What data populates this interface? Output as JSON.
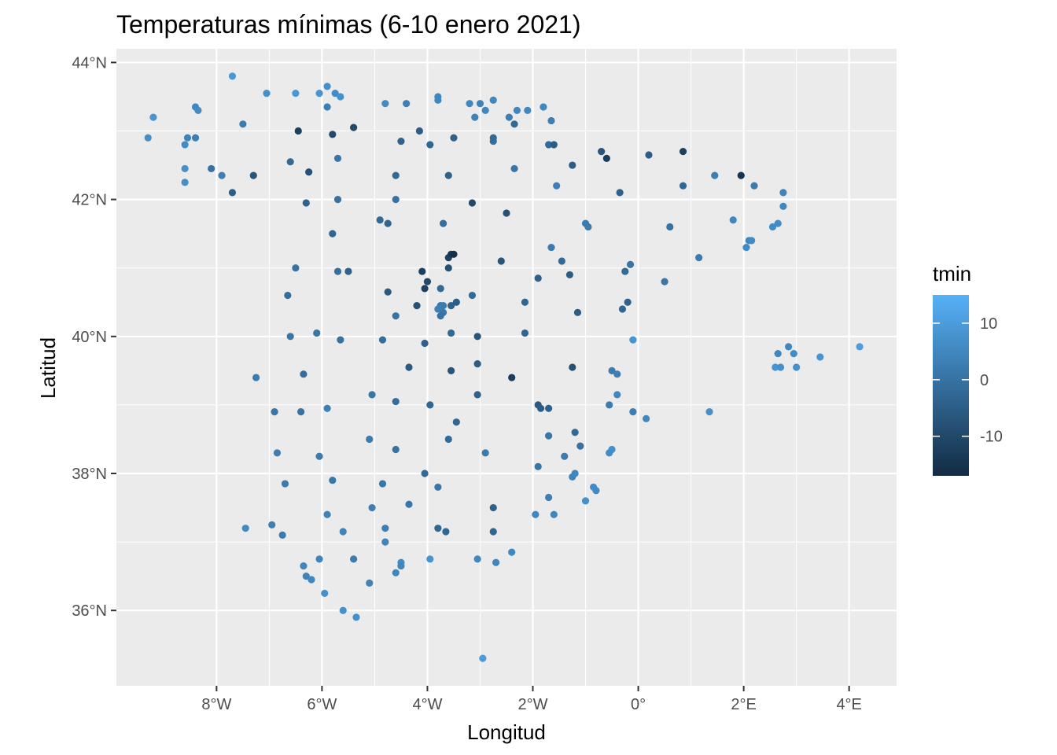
{
  "chart_data": {
    "type": "scatter",
    "title": "Temperaturas mínimas (6-10 enero 2021)",
    "xlabel": "Longitud",
    "ylabel": "Latitud",
    "xlim": [
      -9.9,
      4.9
    ],
    "ylim": [
      34.9,
      44.2
    ],
    "x_ticks": [
      {
        "value": -8,
        "label": "8°W"
      },
      {
        "value": -6,
        "label": "6°W"
      },
      {
        "value": -4,
        "label": "4°W"
      },
      {
        "value": -2,
        "label": "2°W"
      },
      {
        "value": 0,
        "label": "0°"
      },
      {
        "value": 2,
        "label": "2°E"
      },
      {
        "value": 4,
        "label": "4°E"
      }
    ],
    "y_ticks": [
      {
        "value": 36,
        "label": "36°N"
      },
      {
        "value": 38,
        "label": "38°N"
      },
      {
        "value": 40,
        "label": "40°N"
      },
      {
        "value": 42,
        "label": "42°N"
      },
      {
        "value": 44,
        "label": "44°N"
      }
    ],
    "grid": true,
    "panel_background": "#ebebeb",
    "grid_color": "#ffffff",
    "color_scale": {
      "variable": "tmin",
      "low_color": "#132b43",
      "high_color": "#56b1f7",
      "limits": [
        -17,
        15
      ],
      "breaks": [
        {
          "value": 10,
          "label": "10"
        },
        {
          "value": 0,
          "label": "0"
        },
        {
          "value": -10,
          "label": "-10"
        }
      ]
    },
    "legend_position": "right",
    "points": [
      {
        "x": -9.3,
        "y": 42.9,
        "tmin": 7
      },
      {
        "x": -9.2,
        "y": 43.2,
        "tmin": 8
      },
      {
        "x": -8.6,
        "y": 42.8,
        "tmin": 6
      },
      {
        "x": -8.55,
        "y": 42.9,
        "tmin": 4
      },
      {
        "x": -8.4,
        "y": 42.9,
        "tmin": 3
      },
      {
        "x": -8.4,
        "y": 43.35,
        "tmin": 5
      },
      {
        "x": -8.35,
        "y": 43.3,
        "tmin": 6
      },
      {
        "x": -8.6,
        "y": 42.45,
        "tmin": 7
      },
      {
        "x": -8.6,
        "y": 42.25,
        "tmin": 7
      },
      {
        "x": -8.1,
        "y": 42.45,
        "tmin": 0
      },
      {
        "x": -7.9,
        "y": 42.35,
        "tmin": 3
      },
      {
        "x": -7.7,
        "y": 42.1,
        "tmin": -5
      },
      {
        "x": -7.7,
        "y": 43.8,
        "tmin": 9
      },
      {
        "x": -7.5,
        "y": 43.1,
        "tmin": 2
      },
      {
        "x": -7.3,
        "y": 42.35,
        "tmin": -7
      },
      {
        "x": -7.05,
        "y": 43.55,
        "tmin": 7
      },
      {
        "x": -6.6,
        "y": 42.55,
        "tmin": -2
      },
      {
        "x": -6.5,
        "y": 43.55,
        "tmin": 9
      },
      {
        "x": -6.45,
        "y": 43.0,
        "tmin": -12
      },
      {
        "x": -6.25,
        "y": 42.4,
        "tmin": -8
      },
      {
        "x": -6.3,
        "y": 41.95,
        "tmin": -4
      },
      {
        "x": -6.05,
        "y": 43.55,
        "tmin": 8
      },
      {
        "x": -5.9,
        "y": 43.65,
        "tmin": 7
      },
      {
        "x": -5.9,
        "y": 43.35,
        "tmin": 3
      },
      {
        "x": -5.75,
        "y": 43.55,
        "tmin": 6
      },
      {
        "x": -5.65,
        "y": 43.5,
        "tmin": 7
      },
      {
        "x": -5.8,
        "y": 42.95,
        "tmin": -10
      },
      {
        "x": -5.7,
        "y": 42.6,
        "tmin": 1
      },
      {
        "x": -5.4,
        "y": 43.05,
        "tmin": -10
      },
      {
        "x": -5.7,
        "y": 42.0,
        "tmin": 0
      },
      {
        "x": -5.8,
        "y": 41.5,
        "tmin": -3
      },
      {
        "x": -5.7,
        "y": 40.95,
        "tmin": -1
      },
      {
        "x": -5.5,
        "y": 40.95,
        "tmin": -4
      },
      {
        "x": -6.5,
        "y": 41.0,
        "tmin": 0
      },
      {
        "x": -6.65,
        "y": 40.6,
        "tmin": -1
      },
      {
        "x": -6.6,
        "y": 40.0,
        "tmin": 1
      },
      {
        "x": -6.1,
        "y": 40.05,
        "tmin": 1
      },
      {
        "x": -5.65,
        "y": 39.95,
        "tmin": 0
      },
      {
        "x": -7.25,
        "y": 39.4,
        "tmin": 2
      },
      {
        "x": -6.35,
        "y": 39.45,
        "tmin": -1
      },
      {
        "x": -6.9,
        "y": 38.9,
        "tmin": 1
      },
      {
        "x": -6.4,
        "y": 38.9,
        "tmin": 0
      },
      {
        "x": -5.9,
        "y": 38.95,
        "tmin": 3
      },
      {
        "x": -6.85,
        "y": 38.3,
        "tmin": 3
      },
      {
        "x": -6.05,
        "y": 38.25,
        "tmin": 2
      },
      {
        "x": -6.7,
        "y": 37.85,
        "tmin": 2
      },
      {
        "x": -5.8,
        "y": 37.9,
        "tmin": 1
      },
      {
        "x": -5.9,
        "y": 37.4,
        "tmin": 4
      },
      {
        "x": -7.45,
        "y": 37.2,
        "tmin": 6
      },
      {
        "x": -6.95,
        "y": 37.25,
        "tmin": 3
      },
      {
        "x": -6.75,
        "y": 37.1,
        "tmin": 2
      },
      {
        "x": -5.6,
        "y": 37.15,
        "tmin": 4
      },
      {
        "x": -6.35,
        "y": 36.65,
        "tmin": 5
      },
      {
        "x": -6.3,
        "y": 36.5,
        "tmin": 4
      },
      {
        "x": -6.2,
        "y": 36.45,
        "tmin": 5
      },
      {
        "x": -6.05,
        "y": 36.75,
        "tmin": 4
      },
      {
        "x": -5.95,
        "y": 36.25,
        "tmin": 7
      },
      {
        "x": -5.6,
        "y": 36.0,
        "tmin": 7
      },
      {
        "x": -5.35,
        "y": 35.9,
        "tmin": 7
      },
      {
        "x": -5.4,
        "y": 36.75,
        "tmin": 2
      },
      {
        "x": -5.1,
        "y": 36.4,
        "tmin": 4
      },
      {
        "x": -5.05,
        "y": 37.5,
        "tmin": 3
      },
      {
        "x": -5.1,
        "y": 38.5,
        "tmin": 2
      },
      {
        "x": -5.05,
        "y": 39.15,
        "tmin": 1
      },
      {
        "x": -4.85,
        "y": 37.85,
        "tmin": 1
      },
      {
        "x": -4.8,
        "y": 37.2,
        "tmin": 3
      },
      {
        "x": -4.8,
        "y": 37.0,
        "tmin": 4
      },
      {
        "x": -4.6,
        "y": 36.55,
        "tmin": 5
      },
      {
        "x": -4.5,
        "y": 36.7,
        "tmin": 6
      },
      {
        "x": -4.5,
        "y": 36.65,
        "tmin": 5
      },
      {
        "x": -4.35,
        "y": 37.55,
        "tmin": 1
      },
      {
        "x": -4.6,
        "y": 38.35,
        "tmin": 0
      },
      {
        "x": -4.6,
        "y": 39.05,
        "tmin": -1
      },
      {
        "x": -4.35,
        "y": 39.55,
        "tmin": -6
      },
      {
        "x": -4.85,
        "y": 39.95,
        "tmin": -1
      },
      {
        "x": -4.6,
        "y": 40.3,
        "tmin": 0
      },
      {
        "x": -4.75,
        "y": 40.65,
        "tmin": -6
      },
      {
        "x": -4.9,
        "y": 41.7,
        "tmin": -2
      },
      {
        "x": -4.75,
        "y": 41.65,
        "tmin": -3
      },
      {
        "x": -4.6,
        "y": 42.0,
        "tmin": 0
      },
      {
        "x": -4.6,
        "y": 42.35,
        "tmin": -2
      },
      {
        "x": -4.5,
        "y": 42.85,
        "tmin": -4
      },
      {
        "x": -4.8,
        "y": 43.4,
        "tmin": 6
      },
      {
        "x": -4.4,
        "y": 43.4,
        "tmin": 3
      },
      {
        "x": -4.15,
        "y": 43.0,
        "tmin": -5
      },
      {
        "x": -3.95,
        "y": 42.8,
        "tmin": -3
      },
      {
        "x": -3.8,
        "y": 43.45,
        "tmin": 5
      },
      {
        "x": -3.8,
        "y": 43.5,
        "tmin": 5
      },
      {
        "x": -3.5,
        "y": 42.9,
        "tmin": -4
      },
      {
        "x": -3.6,
        "y": 42.35,
        "tmin": -4
      },
      {
        "x": -3.7,
        "y": 41.65,
        "tmin": -1
      },
      {
        "x": -3.6,
        "y": 41.15,
        "tmin": -12
      },
      {
        "x": -3.55,
        "y": 41.2,
        "tmin": -14
      },
      {
        "x": -3.5,
        "y": 41.2,
        "tmin": -16
      },
      {
        "x": -3.6,
        "y": 41.0,
        "tmin": -8
      },
      {
        "x": -4.1,
        "y": 40.95,
        "tmin": -12
      },
      {
        "x": -4.0,
        "y": 40.8,
        "tmin": -10
      },
      {
        "x": -4.05,
        "y": 40.7,
        "tmin": -12
      },
      {
        "x": -4.2,
        "y": 40.45,
        "tmin": -8
      },
      {
        "x": -3.75,
        "y": 40.7,
        "tmin": -2
      },
      {
        "x": -3.75,
        "y": 40.45,
        "tmin": 1
      },
      {
        "x": -3.7,
        "y": 40.45,
        "tmin": 2
      },
      {
        "x": -3.8,
        "y": 40.4,
        "tmin": 3
      },
      {
        "x": -3.7,
        "y": 40.35,
        "tmin": 1
      },
      {
        "x": -3.75,
        "y": 40.3,
        "tmin": 0
      },
      {
        "x": -3.55,
        "y": 40.45,
        "tmin": -4
      },
      {
        "x": -3.45,
        "y": 40.5,
        "tmin": -5
      },
      {
        "x": -3.55,
        "y": 40.05,
        "tmin": -2
      },
      {
        "x": -4.05,
        "y": 39.9,
        "tmin": -4
      },
      {
        "x": -3.55,
        "y": 39.5,
        "tmin": -7
      },
      {
        "x": -3.95,
        "y": 39.0,
        "tmin": -3
      },
      {
        "x": -3.45,
        "y": 38.75,
        "tmin": -3
      },
      {
        "x": -3.6,
        "y": 38.5,
        "tmin": -2
      },
      {
        "x": -4.05,
        "y": 38.0,
        "tmin": -2
      },
      {
        "x": -3.8,
        "y": 37.8,
        "tmin": 1
      },
      {
        "x": -3.8,
        "y": 37.2,
        "tmin": -3
      },
      {
        "x": -3.65,
        "y": 37.15,
        "tmin": -3
      },
      {
        "x": -3.95,
        "y": 36.75,
        "tmin": 8
      },
      {
        "x": -3.2,
        "y": 43.4,
        "tmin": 5
      },
      {
        "x": -3.1,
        "y": 43.2,
        "tmin": 4
      },
      {
        "x": -3.0,
        "y": 43.4,
        "tmin": 4
      },
      {
        "x": -2.9,
        "y": 43.3,
        "tmin": 5
      },
      {
        "x": -2.75,
        "y": 43.45,
        "tmin": 5
      },
      {
        "x": -2.75,
        "y": 42.85,
        "tmin": -1
      },
      {
        "x": -2.75,
        "y": 42.9,
        "tmin": -2
      },
      {
        "x": -2.45,
        "y": 43.2,
        "tmin": 3
      },
      {
        "x": -2.35,
        "y": 43.1,
        "tmin": -2
      },
      {
        "x": -2.3,
        "y": 43.3,
        "tmin": 5
      },
      {
        "x": -2.1,
        "y": 43.3,
        "tmin": 5
      },
      {
        "x": -1.8,
        "y": 43.35,
        "tmin": 5
      },
      {
        "x": -1.65,
        "y": 43.15,
        "tmin": 3
      },
      {
        "x": -1.7,
        "y": 42.8,
        "tmin": -2
      },
      {
        "x": -1.6,
        "y": 42.8,
        "tmin": -5
      },
      {
        "x": -2.35,
        "y": 42.45,
        "tmin": 1
      },
      {
        "x": -2.5,
        "y": 41.8,
        "tmin": -8
      },
      {
        "x": -3.15,
        "y": 41.95,
        "tmin": -10
      },
      {
        "x": -2.6,
        "y": 41.1,
        "tmin": -7
      },
      {
        "x": -3.15,
        "y": 40.6,
        "tmin": -2
      },
      {
        "x": -3.05,
        "y": 40.0,
        "tmin": -7
      },
      {
        "x": -3.05,
        "y": 39.6,
        "tmin": -5
      },
      {
        "x": -3.05,
        "y": 39.15,
        "tmin": -4
      },
      {
        "x": -2.9,
        "y": 38.3,
        "tmin": 2
      },
      {
        "x": -2.75,
        "y": 37.5,
        "tmin": -4
      },
      {
        "x": -2.75,
        "y": 37.15,
        "tmin": -3
      },
      {
        "x": -2.7,
        "y": 36.7,
        "tmin": 5
      },
      {
        "x": -3.05,
        "y": 36.75,
        "tmin": 5
      },
      {
        "x": -2.4,
        "y": 36.85,
        "tmin": 5
      },
      {
        "x": -2.95,
        "y": 35.3,
        "tmin": 10
      },
      {
        "x": -2.4,
        "y": 39.4,
        "tmin": -13
      },
      {
        "x": -2.15,
        "y": 40.5,
        "tmin": -3
      },
      {
        "x": -2.15,
        "y": 40.05,
        "tmin": -3
      },
      {
        "x": -1.9,
        "y": 40.85,
        "tmin": -4
      },
      {
        "x": -1.65,
        "y": 41.3,
        "tmin": 2
      },
      {
        "x": -1.45,
        "y": 41.1,
        "tmin": -2
      },
      {
        "x": -1.3,
        "y": 40.9,
        "tmin": -5
      },
      {
        "x": -1.9,
        "y": 39.0,
        "tmin": -6
      },
      {
        "x": -1.85,
        "y": 38.95,
        "tmin": -5
      },
      {
        "x": -1.7,
        "y": 38.95,
        "tmin": -4
      },
      {
        "x": -1.7,
        "y": 38.55,
        "tmin": 1
      },
      {
        "x": -1.9,
        "y": 38.1,
        "tmin": 1
      },
      {
        "x": -1.7,
        "y": 37.65,
        "tmin": 3
      },
      {
        "x": -1.6,
        "y": 37.4,
        "tmin": 5
      },
      {
        "x": -1.95,
        "y": 37.4,
        "tmin": 5
      },
      {
        "x": -1.25,
        "y": 39.55,
        "tmin": -8
      },
      {
        "x": -1.2,
        "y": 38.6,
        "tmin": -2
      },
      {
        "x": -1.1,
        "y": 38.4,
        "tmin": 0
      },
      {
        "x": -1.4,
        "y": 38.25,
        "tmin": 2
      },
      {
        "x": -1.25,
        "y": 37.95,
        "tmin": 4
      },
      {
        "x": -1.2,
        "y": 38.0,
        "tmin": 5
      },
      {
        "x": -1.0,
        "y": 37.6,
        "tmin": 7
      },
      {
        "x": -0.85,
        "y": 37.8,
        "tmin": 6
      },
      {
        "x": -0.8,
        "y": 37.75,
        "tmin": 6
      },
      {
        "x": -1.55,
        "y": 42.2,
        "tmin": 3
      },
      {
        "x": -1.25,
        "y": 42.5,
        "tmin": -5
      },
      {
        "x": -0.7,
        "y": 42.7,
        "tmin": -7
      },
      {
        "x": -0.6,
        "y": 42.6,
        "tmin": -13
      },
      {
        "x": -0.35,
        "y": 42.1,
        "tmin": -4
      },
      {
        "x": -1.0,
        "y": 41.65,
        "tmin": 2
      },
      {
        "x": -0.95,
        "y": 41.6,
        "tmin": 2
      },
      {
        "x": -0.25,
        "y": 40.95,
        "tmin": -2
      },
      {
        "x": -0.15,
        "y": 41.05,
        "tmin": 1
      },
      {
        "x": -0.3,
        "y": 40.4,
        "tmin": -3
      },
      {
        "x": -0.2,
        "y": 40.5,
        "tmin": -4
      },
      {
        "x": -1.15,
        "y": 40.35,
        "tmin": -5
      },
      {
        "x": -0.1,
        "y": 39.95,
        "tmin": 8
      },
      {
        "x": -0.5,
        "y": 39.5,
        "tmin": 2
      },
      {
        "x": -0.4,
        "y": 39.45,
        "tmin": 3
      },
      {
        "x": -0.4,
        "y": 39.15,
        "tmin": 5
      },
      {
        "x": -0.55,
        "y": 39.0,
        "tmin": 2
      },
      {
        "x": -0.1,
        "y": 38.9,
        "tmin": 3
      },
      {
        "x": 0.15,
        "y": 38.8,
        "tmin": 5
      },
      {
        "x": -0.5,
        "y": 38.35,
        "tmin": 7
      },
      {
        "x": -0.55,
        "y": 38.3,
        "tmin": 6
      },
      {
        "x": 0.2,
        "y": 42.65,
        "tmin": -5
      },
      {
        "x": 0.85,
        "y": 42.7,
        "tmin": -12
      },
      {
        "x": 0.85,
        "y": 42.2,
        "tmin": -3
      },
      {
        "x": 0.6,
        "y": 41.6,
        "tmin": 0
      },
      {
        "x": 0.5,
        "y": 40.8,
        "tmin": 1
      },
      {
        "x": 1.15,
        "y": 41.15,
        "tmin": 2
      },
      {
        "x": 1.45,
        "y": 42.35,
        "tmin": 3
      },
      {
        "x": 1.95,
        "y": 42.35,
        "tmin": -15
      },
      {
        "x": 2.2,
        "y": 42.2,
        "tmin": 2
      },
      {
        "x": 2.75,
        "y": 42.1,
        "tmin": 4
      },
      {
        "x": 2.75,
        "y": 41.9,
        "tmin": 5
      },
      {
        "x": 1.8,
        "y": 41.7,
        "tmin": 5
      },
      {
        "x": 2.1,
        "y": 41.4,
        "tmin": 5
      },
      {
        "x": 2.15,
        "y": 41.4,
        "tmin": 6
      },
      {
        "x": 2.05,
        "y": 41.3,
        "tmin": 6
      },
      {
        "x": 2.55,
        "y": 41.6,
        "tmin": 6
      },
      {
        "x": 2.65,
        "y": 41.65,
        "tmin": 6
      },
      {
        "x": 1.35,
        "y": 38.9,
        "tmin": 7
      },
      {
        "x": 2.6,
        "y": 39.55,
        "tmin": 8
      },
      {
        "x": 2.7,
        "y": 39.55,
        "tmin": 7
      },
      {
        "x": 2.65,
        "y": 39.75,
        "tmin": 5
      },
      {
        "x": 2.85,
        "y": 39.85,
        "tmin": 5
      },
      {
        "x": 2.95,
        "y": 39.75,
        "tmin": 6
      },
      {
        "x": 3.0,
        "y": 39.55,
        "tmin": 7
      },
      {
        "x": 3.45,
        "y": 39.7,
        "tmin": 8
      },
      {
        "x": 4.2,
        "y": 39.85,
        "tmin": 10
      }
    ]
  }
}
